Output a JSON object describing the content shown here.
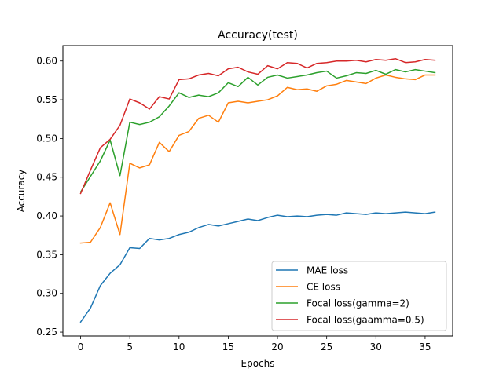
{
  "chart_data": {
    "type": "line",
    "title": "Accuracy(test)",
    "xlabel": "Epochs",
    "ylabel": "Accuracy",
    "xlim": [
      -1.8,
      37.8
    ],
    "ylim": [
      0.245,
      0.62
    ],
    "xticks": [
      0,
      5,
      10,
      15,
      20,
      25,
      30,
      35
    ],
    "xtick_labels": [
      "0",
      "5",
      "10",
      "15",
      "20",
      "25",
      "30",
      "35"
    ],
    "yticks": [
      0.25,
      0.3,
      0.35,
      0.4,
      0.45,
      0.5,
      0.55,
      0.6
    ],
    "ytick_labels": [
      "0.25",
      "0.30",
      "0.35",
      "0.40",
      "0.45",
      "0.50",
      "0.55",
      "0.60"
    ],
    "grid": false,
    "legend_position": "lower-right",
    "x": [
      0,
      1,
      2,
      3,
      4,
      5,
      6,
      7,
      8,
      9,
      10,
      11,
      12,
      13,
      14,
      15,
      16,
      17,
      18,
      19,
      20,
      21,
      22,
      23,
      24,
      25,
      26,
      27,
      28,
      29,
      30,
      31,
      32,
      33,
      34,
      35,
      36
    ],
    "series": [
      {
        "name": "MAE loss",
        "color": "#1f77b4",
        "values": [
          0.263,
          0.281,
          0.31,
          0.326,
          0.337,
          0.359,
          0.358,
          0.371,
          0.369,
          0.371,
          0.376,
          0.379,
          0.385,
          0.389,
          0.387,
          0.39,
          0.393,
          0.396,
          0.394,
          0.398,
          0.401,
          0.399,
          0.4,
          0.399,
          0.401,
          0.402,
          0.401,
          0.404,
          0.403,
          0.402,
          0.404,
          0.403,
          0.404,
          0.405,
          0.404,
          0.403,
          0.405
        ]
      },
      {
        "name": "CE loss",
        "color": "#ff7f0e",
        "values": [
          0.365,
          0.366,
          0.385,
          0.417,
          0.376,
          0.468,
          0.462,
          0.466,
          0.495,
          0.483,
          0.504,
          0.509,
          0.526,
          0.53,
          0.521,
          0.546,
          0.548,
          0.546,
          0.548,
          0.55,
          0.555,
          0.566,
          0.563,
          0.564,
          0.561,
          0.568,
          0.57,
          0.575,
          0.573,
          0.571,
          0.578,
          0.582,
          0.579,
          0.577,
          0.576,
          0.582,
          0.582
        ]
      },
      {
        "name": "Focal loss(gamma=2)",
        "color": "#2ca02c",
        "values": [
          0.431,
          0.451,
          0.471,
          0.498,
          0.452,
          0.521,
          0.518,
          0.521,
          0.528,
          0.542,
          0.559,
          0.553,
          0.556,
          0.554,
          0.559,
          0.572,
          0.567,
          0.579,
          0.569,
          0.579,
          0.582,
          0.578,
          0.58,
          0.582,
          0.585,
          0.587,
          0.578,
          0.581,
          0.585,
          0.584,
          0.588,
          0.583,
          0.589,
          0.586,
          0.589,
          0.587,
          0.585
        ]
      },
      {
        "name": "Focal loss(gaamma=0.5)",
        "color": "#d62728",
        "values": [
          0.429,
          0.459,
          0.488,
          0.499,
          0.517,
          0.551,
          0.546,
          0.538,
          0.554,
          0.551,
          0.576,
          0.577,
          0.582,
          0.584,
          0.581,
          0.59,
          0.592,
          0.586,
          0.583,
          0.594,
          0.59,
          0.598,
          0.597,
          0.591,
          0.597,
          0.598,
          0.6,
          0.6,
          0.601,
          0.599,
          0.602,
          0.601,
          0.603,
          0.598,
          0.599,
          0.602,
          0.601
        ]
      }
    ]
  }
}
